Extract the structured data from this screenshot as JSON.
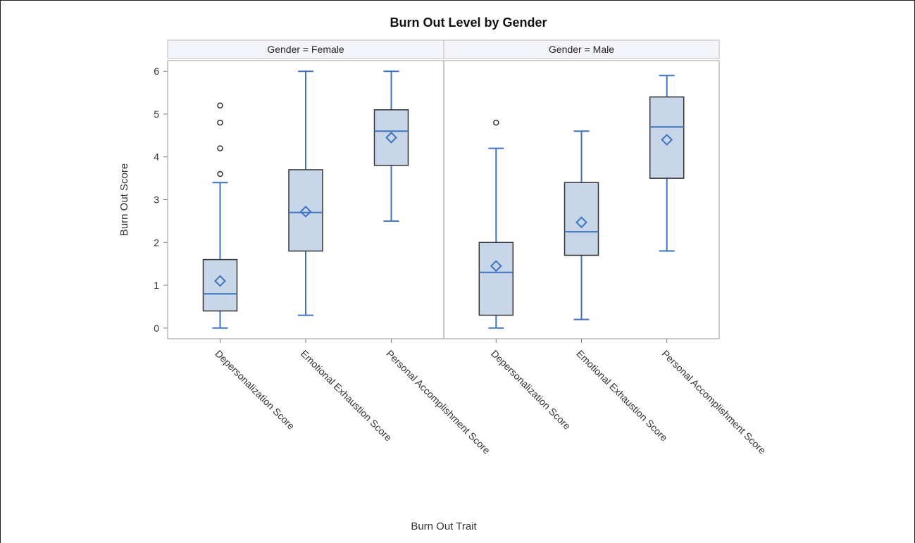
{
  "chart_data": {
    "type": "box",
    "title": "Burn Out Level by Gender",
    "xlabel": "Burn Out Trait",
    "ylabel": "Burn Out Score",
    "ylim": [
      -0.25,
      6.25
    ],
    "yticks": [
      0,
      1,
      2,
      3,
      4,
      5,
      6
    ],
    "categories": [
      "Depersonalization Score",
      "Emotional Exhaustion Score",
      "Personal Accomplishment Score"
    ],
    "colors": {
      "box_fill": "#c7d6e8",
      "box_edge": "#333333",
      "whisker": "#3f73c0",
      "median": "#3f73c0",
      "mean": "#3f73c0",
      "outlier": "#333333",
      "panel_border": "#bbbbbb",
      "strip_fill": "#f4f5fb"
    },
    "panels": [
      {
        "label": "Gender = Female",
        "boxes": [
          {
            "category": "Depersonalization Score",
            "min": 0,
            "q1": 0.4,
            "median": 0.8,
            "q3": 1.6,
            "max": 3.4,
            "mean": 1.1,
            "outliers": [
              3.6,
              4.2,
              4.8,
              5.2
            ]
          },
          {
            "category": "Emotional Exhaustion Score",
            "min": 0.3,
            "q1": 1.8,
            "median": 2.7,
            "q3": 3.7,
            "max": 6.0,
            "mean": 2.72,
            "outliers": []
          },
          {
            "category": "Personal Accomplishment Score",
            "min": 2.5,
            "q1": 3.8,
            "median": 4.6,
            "q3": 5.1,
            "max": 6.0,
            "mean": 4.45,
            "outliers": []
          }
        ]
      },
      {
        "label": "Gender = Male",
        "boxes": [
          {
            "category": "Depersonalization Score",
            "min": 0,
            "q1": 0.3,
            "median": 1.3,
            "q3": 2.0,
            "max": 4.2,
            "mean": 1.45,
            "outliers": [
              4.8
            ]
          },
          {
            "category": "Emotional Exhaustion Score",
            "min": 0.2,
            "q1": 1.7,
            "median": 2.25,
            "q3": 3.4,
            "max": 4.6,
            "mean": 2.47,
            "outliers": []
          },
          {
            "category": "Personal Accomplishment Score",
            "min": 1.8,
            "q1": 3.5,
            "median": 4.7,
            "q3": 5.4,
            "max": 5.9,
            "mean": 4.4,
            "outliers": []
          }
        ]
      }
    ]
  }
}
